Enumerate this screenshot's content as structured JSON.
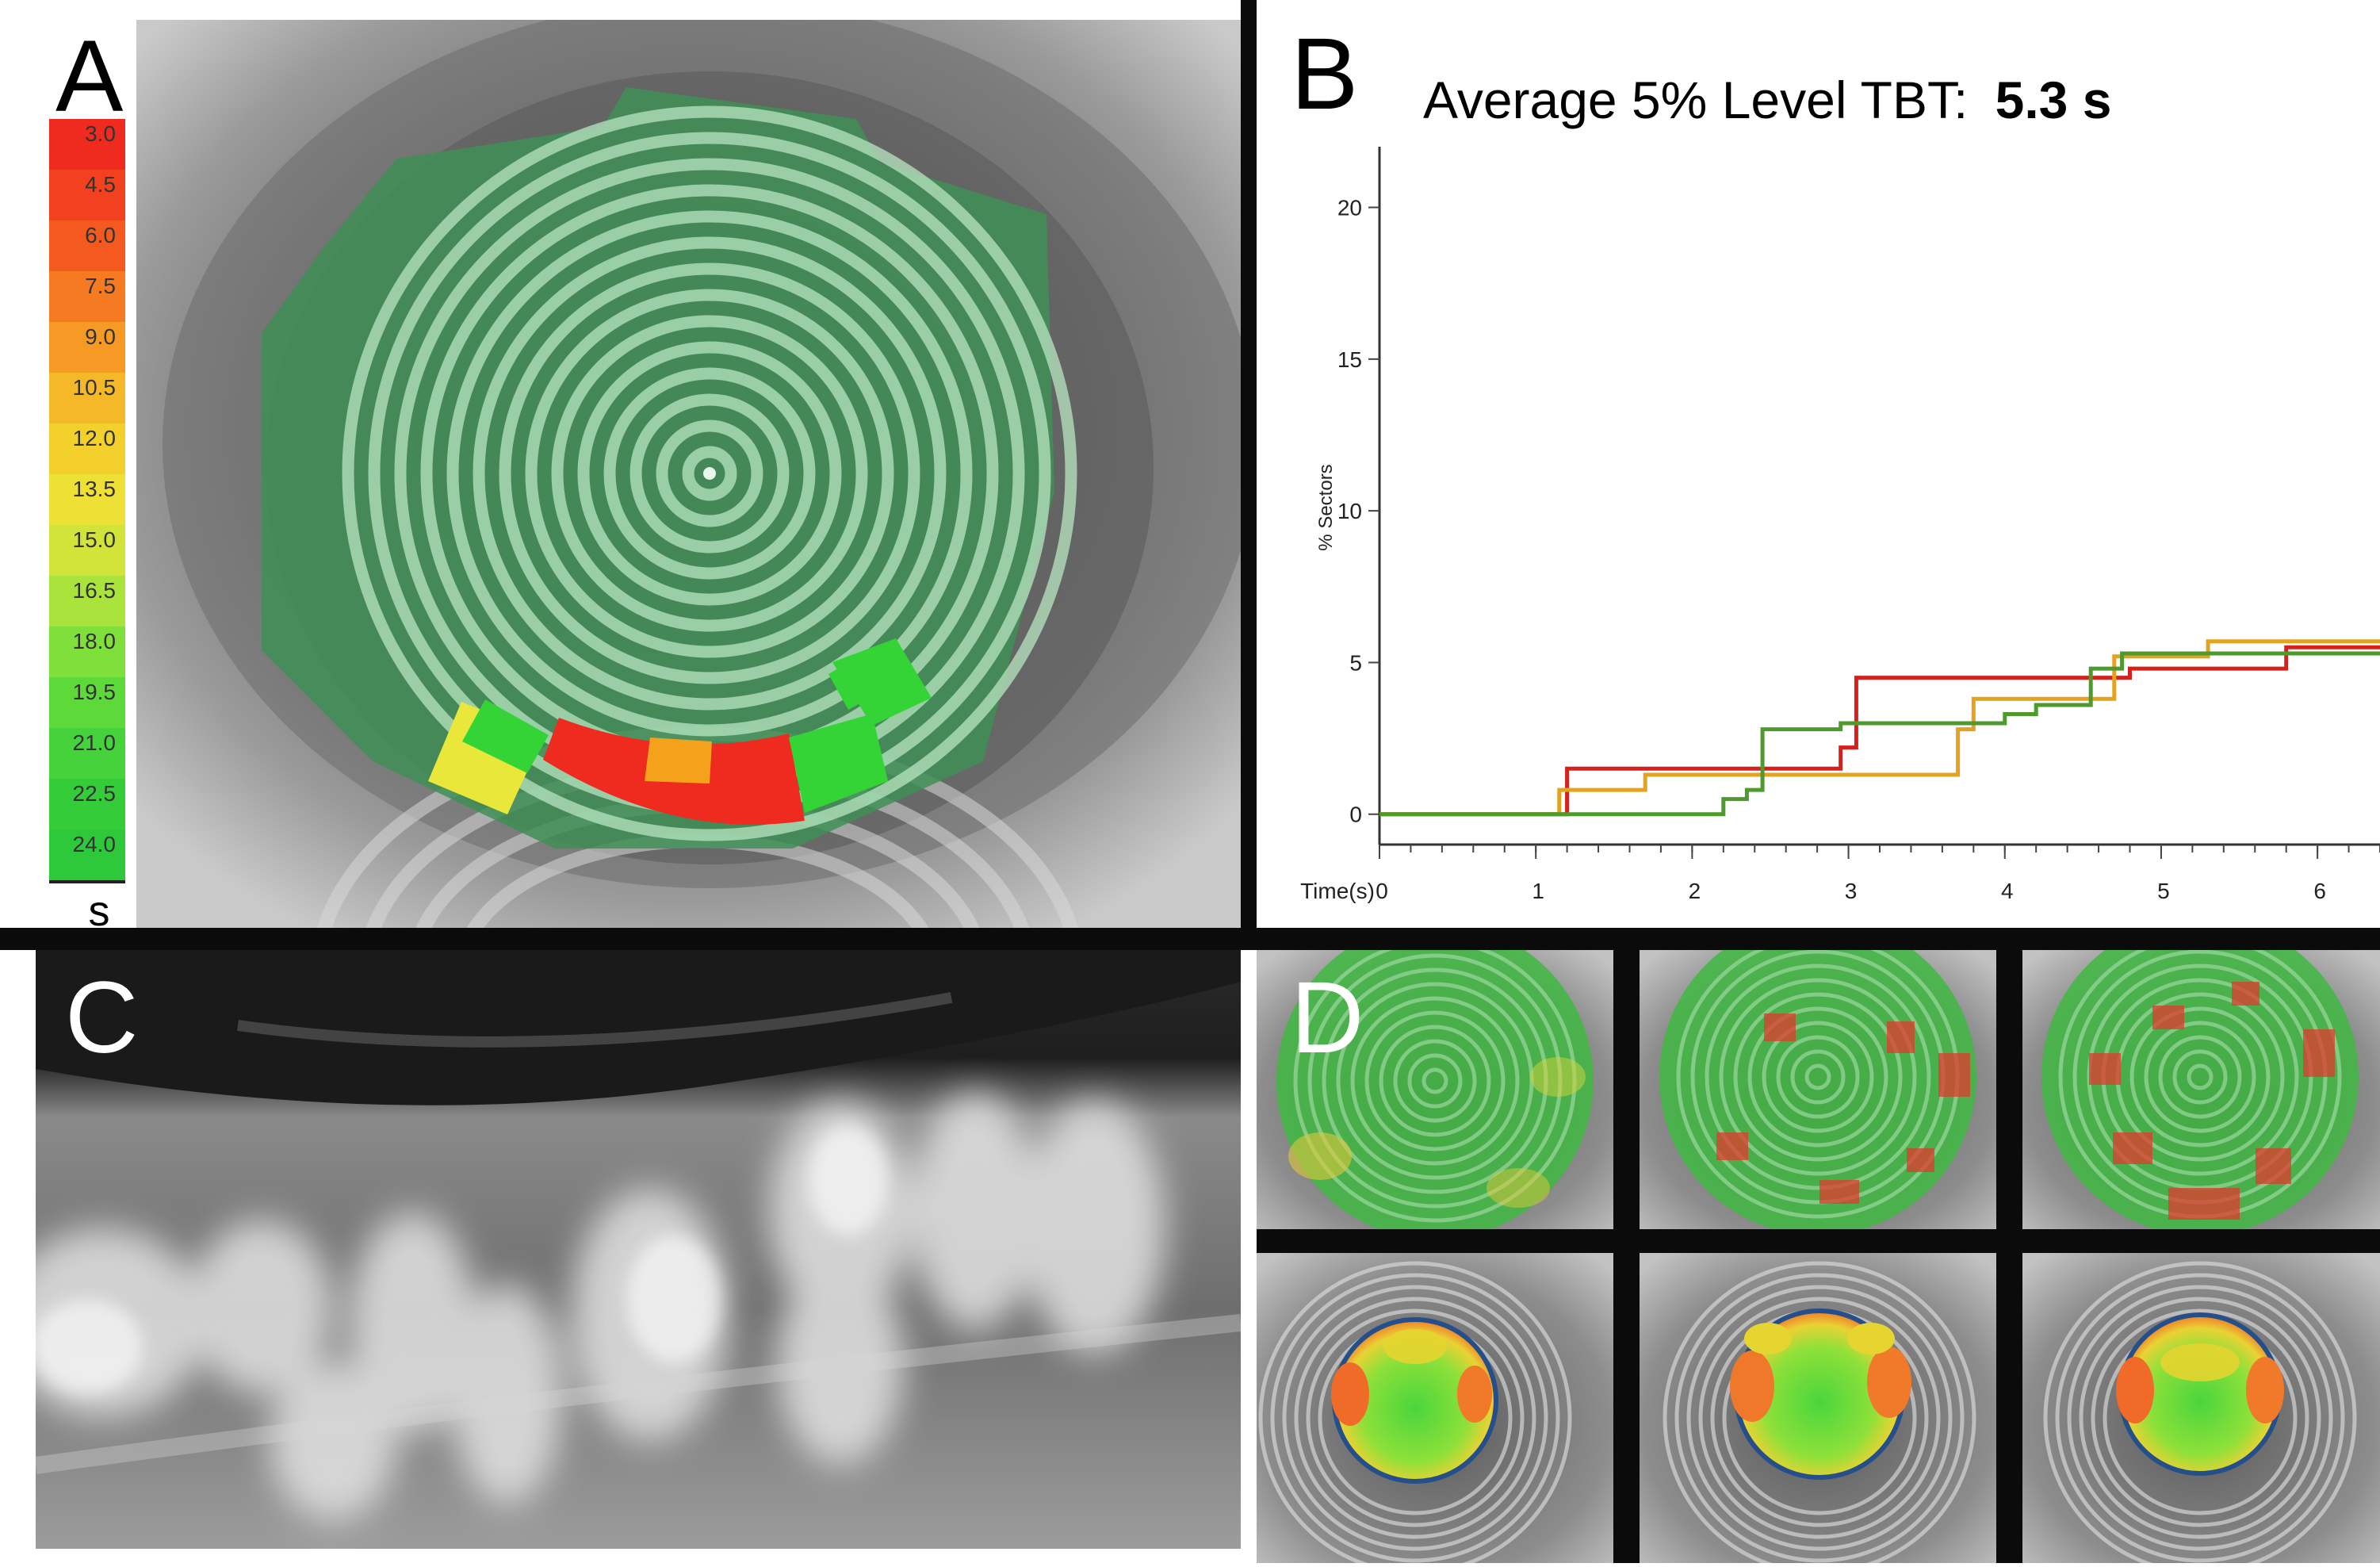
{
  "panels": {
    "a": {
      "letter": "A"
    },
    "b": {
      "letter": "B"
    },
    "c": {
      "letter": "C"
    },
    "d": {
      "letter": "D"
    }
  },
  "colorscale": {
    "labels": [
      "3.0",
      "4.5",
      "6.0",
      "7.5",
      "9.0",
      "10.5",
      "12.0",
      "13.5",
      "15.0",
      "16.5",
      "18.0",
      "19.5",
      "21.0",
      "22.5",
      "24.0"
    ],
    "colors": [
      "#ef2a1e",
      "#f2411e",
      "#f45a20",
      "#f57a22",
      "#f69a25",
      "#f5b828",
      "#f3d02c",
      "#eee034",
      "#d2e43a",
      "#a9e33c",
      "#7fdf3b",
      "#5ed93a",
      "#45d23a",
      "#35cc3a",
      "#2ec83b"
    ],
    "unit": "s"
  },
  "chart": {
    "title_prefix": "Average 5% Level TBT:",
    "title_value": "5.3 s",
    "ylabel": "% Sectors",
    "xlabel": "Time(s)"
  },
  "chart_data": {
    "type": "line",
    "title": "Average 5% Level TBT: 5.3 s",
    "xlabel": "Time(s)",
    "ylabel": "% Sectors",
    "xlim": [
      0,
      6.4
    ],
    "ylim": [
      -1,
      22
    ],
    "xticks": [
      0,
      1,
      2,
      3,
      4,
      5,
      6
    ],
    "yticks": [
      0,
      5,
      10,
      15,
      20
    ],
    "series": [
      {
        "name": "red",
        "color": "#d6201c",
        "x": [
          0,
          1.2,
          1.2,
          2.95,
          2.95,
          3.05,
          3.05,
          4.8,
          4.8,
          5.8,
          5.8,
          6.4
        ],
        "y": [
          0,
          0,
          1.5,
          1.5,
          2.2,
          2.2,
          4.5,
          4.5,
          4.8,
          4.8,
          5.5,
          5.5
        ]
      },
      {
        "name": "orange",
        "color": "#e3a21f",
        "x": [
          0,
          1.15,
          1.15,
          1.7,
          1.7,
          3.7,
          3.7,
          3.8,
          3.8,
          4.7,
          4.7,
          5.3,
          5.3,
          6.4
        ],
        "y": [
          0,
          0,
          0.8,
          0.8,
          1.3,
          1.3,
          2.8,
          2.8,
          3.8,
          3.8,
          5.2,
          5.2,
          5.7,
          5.7
        ]
      },
      {
        "name": "green",
        "color": "#4e9a2c",
        "x": [
          0,
          2.2,
          2.2,
          2.35,
          2.35,
          2.45,
          2.45,
          2.95,
          2.95,
          4.0,
          4.0,
          4.2,
          4.2,
          4.55,
          4.55,
          4.75,
          4.75,
          6.4
        ],
        "y": [
          0,
          0,
          0.5,
          0.5,
          0.8,
          0.8,
          2.8,
          2.8,
          3.0,
          3.0,
          3.3,
          3.3,
          3.6,
          3.6,
          4.8,
          4.8,
          5.3,
          5.3
        ]
      }
    ]
  }
}
